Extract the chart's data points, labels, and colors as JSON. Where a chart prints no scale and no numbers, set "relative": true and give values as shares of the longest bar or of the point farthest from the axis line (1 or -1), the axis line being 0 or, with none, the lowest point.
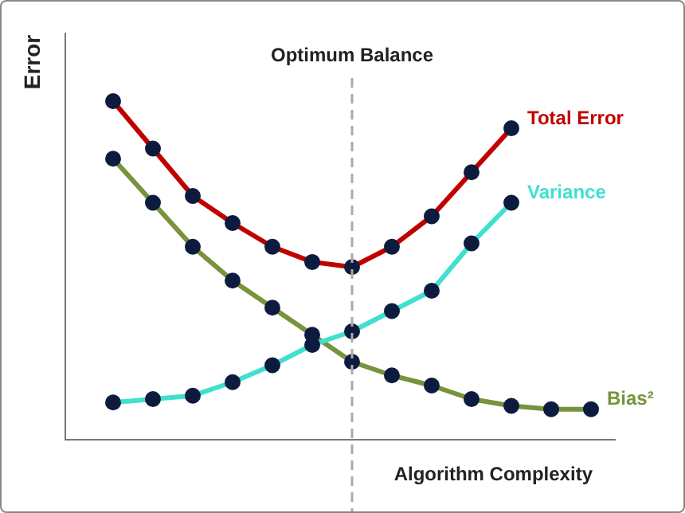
{
  "chart_data": {
    "type": "line",
    "relative": true,
    "xlabel": "Algorithm Complexity",
    "ylabel": "Error",
    "grid": false,
    "legend": false,
    "marker": "circle",
    "line_style": "solid",
    "categories": [
      null,
      null,
      null,
      null,
      null,
      null,
      null,
      null,
      null,
      null,
      null,
      null,
      null
    ],
    "series": [
      {
        "name": "Total Error",
        "color": "#c00000",
        "values": [
          1,
          0.86,
          0.72,
          0.64,
          0.57,
          0.525,
          0.51,
          0.57,
          0.66,
          0.79,
          0.92,
          null,
          null
        ]
      },
      {
        "name": "Variance",
        "color": "#40e0d0",
        "values": [
          0.11,
          0.12,
          0.13,
          0.17,
          0.22,
          0.28,
          0.32,
          0.38,
          0.44,
          0.58,
          0.7,
          null,
          null
        ]
      },
      {
        "name": "Bias²",
        "color": "#77933c",
        "values": [
          0.83,
          0.7,
          0.57,
          0.47,
          0.39,
          0.31,
          0.23,
          0.19,
          0.16,
          0.12,
          0.1,
          0.09,
          0.09
        ]
      }
    ],
    "annotations": [
      "Optimum Balance"
    ]
  }
}
